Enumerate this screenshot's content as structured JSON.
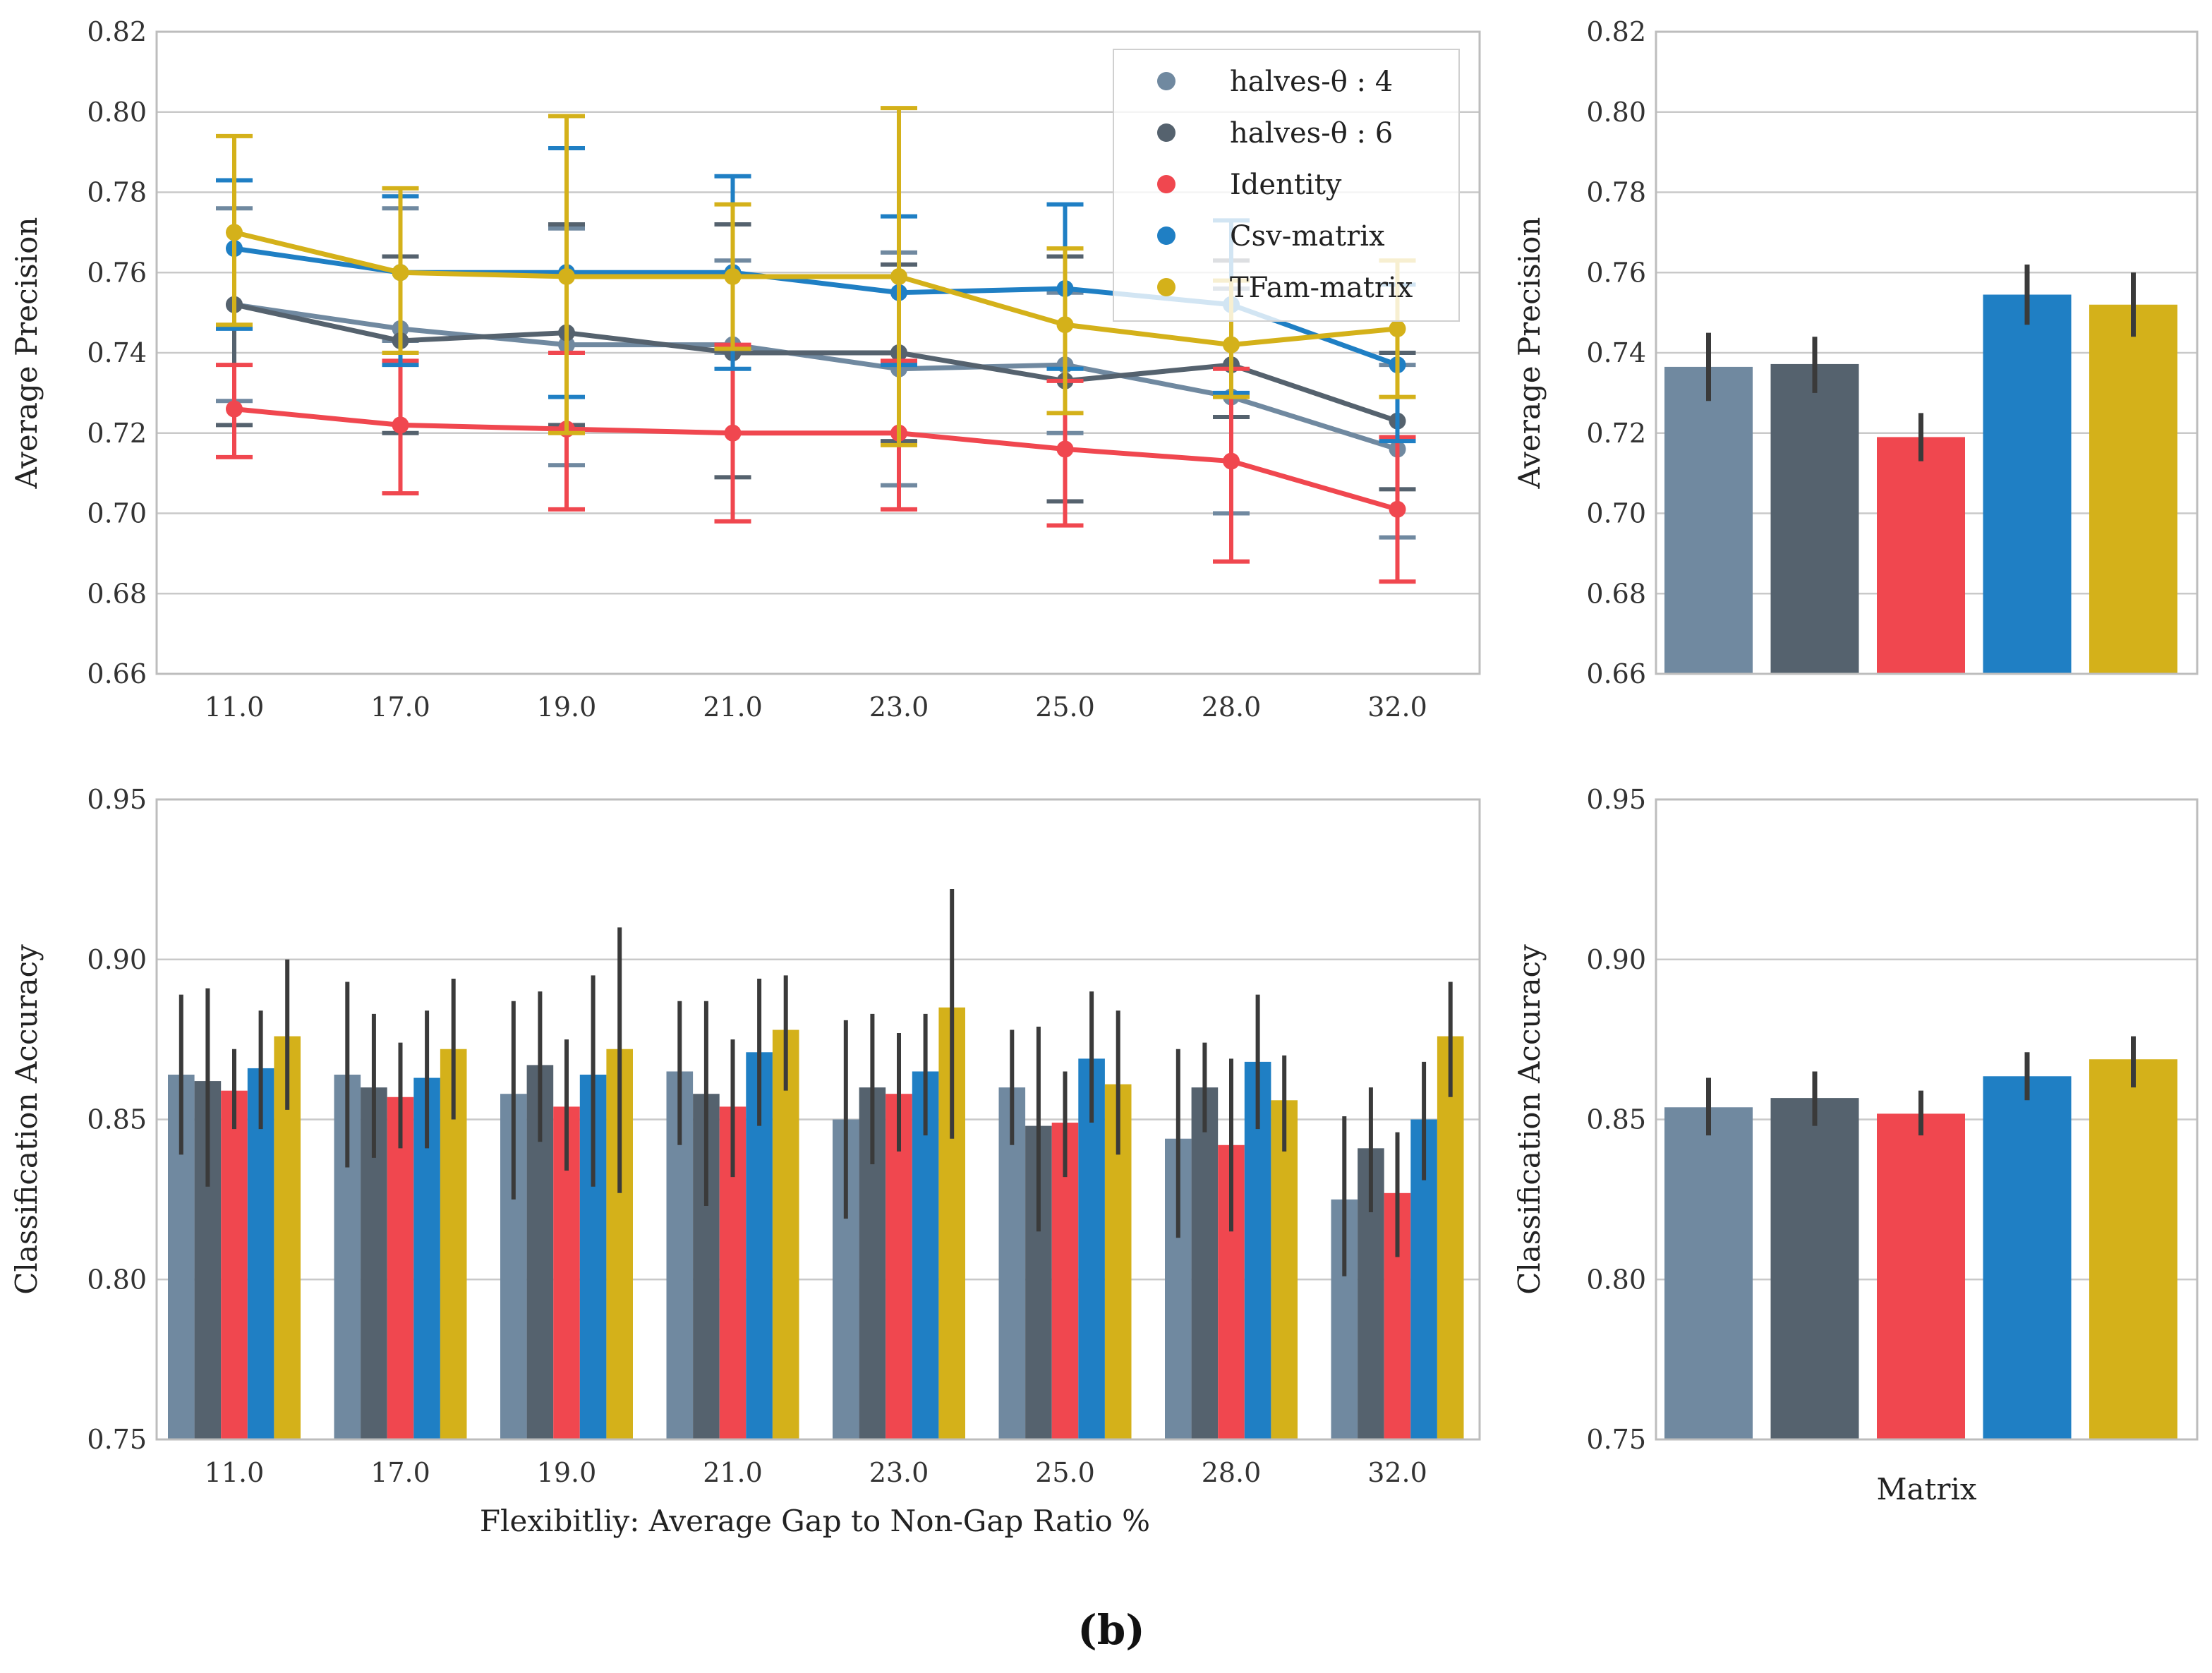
{
  "caption": "(b)",
  "colors": {
    "halves4": "#7089a0",
    "halves6": "#55626e",
    "identity": "#f0474f",
    "csv": "#1f7fc4",
    "tfam": "#d4b11a",
    "errbar": "#3a3a3a",
    "grid": "#c9c9c9",
    "axis": "#bdbdbd"
  },
  "series": [
    {
      "key": "halves4",
      "name": "halves-θ : 4"
    },
    {
      "key": "halves6",
      "name": "halves-θ : 6"
    },
    {
      "key": "identity",
      "name": "Identity"
    },
    {
      "key": "csv",
      "name": "Csv-matrix"
    },
    {
      "key": "tfam",
      "name": "TFam-matrix"
    }
  ],
  "chart_data": [
    {
      "id": "ap_line",
      "type": "line",
      "title": "",
      "xlabel": "",
      "ylabel": "Average Precision",
      "categories": [
        "11.0",
        "17.0",
        "19.0",
        "21.0",
        "23.0",
        "25.0",
        "28.0",
        "32.0"
      ],
      "ylim": [
        0.66,
        0.82
      ],
      "yticks": [
        "0.66",
        "0.68",
        "0.70",
        "0.72",
        "0.74",
        "0.76",
        "0.78",
        "0.80",
        "0.82"
      ],
      "legend": "top-right",
      "series": [
        {
          "name": "halves-θ : 4",
          "values": [
            0.752,
            0.746,
            0.742,
            0.742,
            0.736,
            0.737,
            0.729,
            0.716
          ],
          "err_low": [
            0.728,
            0.743,
            0.712,
            0.74,
            0.707,
            0.72,
            0.7,
            0.694
          ],
          "err_high": [
            0.776,
            0.776,
            0.771,
            0.763,
            0.765,
            0.755,
            0.756,
            0.737
          ]
        },
        {
          "name": "halves-θ : 6",
          "values": [
            0.752,
            0.743,
            0.745,
            0.74,
            0.74,
            0.733,
            0.737,
            0.723
          ],
          "err_low": [
            0.722,
            0.72,
            0.722,
            0.709,
            0.718,
            0.703,
            0.724,
            0.706
          ],
          "err_high": [
            0.783,
            0.764,
            0.772,
            0.772,
            0.762,
            0.764,
            0.763,
            0.74
          ]
        },
        {
          "name": "Identity",
          "values": [
            0.726,
            0.722,
            0.721,
            0.72,
            0.72,
            0.716,
            0.713,
            0.701
          ],
          "err_low": [
            0.714,
            0.705,
            0.701,
            0.698,
            0.701,
            0.697,
            0.688,
            0.683
          ],
          "err_high": [
            0.737,
            0.738,
            0.74,
            0.742,
            0.738,
            0.733,
            0.736,
            0.719
          ]
        },
        {
          "name": "Csv-matrix",
          "values": [
            0.766,
            0.76,
            0.76,
            0.76,
            0.755,
            0.756,
            0.752,
            0.737
          ],
          "err_low": [
            0.746,
            0.737,
            0.729,
            0.736,
            0.737,
            0.736,
            0.73,
            0.718
          ],
          "err_high": [
            0.783,
            0.779,
            0.791,
            0.784,
            0.774,
            0.777,
            0.773,
            0.757
          ]
        },
        {
          "name": "TFam-matrix",
          "values": [
            0.77,
            0.76,
            0.759,
            0.759,
            0.759,
            0.747,
            0.742,
            0.746
          ],
          "err_low": [
            0.747,
            0.74,
            0.72,
            0.741,
            0.717,
            0.725,
            0.729,
            0.729
          ],
          "err_high": [
            0.794,
            0.781,
            0.799,
            0.777,
            0.801,
            0.766,
            0.758,
            0.763
          ]
        }
      ]
    },
    {
      "id": "ap_bar",
      "type": "bar",
      "title": "",
      "xlabel": "",
      "ylabel": "Average Precision",
      "categories": [
        "halves-θ : 4",
        "halves-θ : 6",
        "Identity",
        "Csv-matrix",
        "TFam-matrix"
      ],
      "values": [
        0.7365,
        0.7372,
        0.719,
        0.7545,
        0.752
      ],
      "err_low": [
        0.728,
        0.73,
        0.713,
        0.747,
        0.744
      ],
      "err_high": [
        0.745,
        0.744,
        0.725,
        0.762,
        0.76
      ],
      "ylim": [
        0.66,
        0.82
      ],
      "yticks": [
        "0.66",
        "0.68",
        "0.70",
        "0.72",
        "0.74",
        "0.76",
        "0.78",
        "0.80",
        "0.82"
      ]
    },
    {
      "id": "ca_grouped",
      "type": "bar",
      "title": "",
      "xlabel": "Flexibitliy: Average Gap to Non-Gap Ratio %",
      "ylabel": "Classification Accuracy",
      "categories": [
        "11.0",
        "17.0",
        "19.0",
        "21.0",
        "23.0",
        "25.0",
        "28.0",
        "32.0"
      ],
      "ylim": [
        0.75,
        0.95
      ],
      "yticks": [
        "0.75",
        "0.80",
        "0.85",
        "0.90",
        "0.95"
      ],
      "series": [
        {
          "name": "halves-θ : 4",
          "values": [
            0.864,
            0.864,
            0.858,
            0.865,
            0.85,
            0.86,
            0.844,
            0.825
          ],
          "err_low": [
            0.839,
            0.835,
            0.825,
            0.842,
            0.819,
            0.842,
            0.813,
            0.801
          ],
          "err_high": [
            0.889,
            0.893,
            0.887,
            0.887,
            0.881,
            0.878,
            0.872,
            0.851
          ]
        },
        {
          "name": "halves-θ : 6",
          "values": [
            0.862,
            0.86,
            0.867,
            0.858,
            0.86,
            0.848,
            0.86,
            0.841
          ],
          "err_low": [
            0.829,
            0.838,
            0.843,
            0.823,
            0.836,
            0.815,
            0.846,
            0.821
          ],
          "err_high": [
            0.891,
            0.883,
            0.89,
            0.887,
            0.883,
            0.879,
            0.874,
            0.86
          ]
        },
        {
          "name": "Identity",
          "values": [
            0.859,
            0.857,
            0.854,
            0.854,
            0.858,
            0.849,
            0.842,
            0.827
          ],
          "err_low": [
            0.847,
            0.841,
            0.834,
            0.832,
            0.84,
            0.832,
            0.815,
            0.807
          ],
          "err_high": [
            0.872,
            0.874,
            0.875,
            0.875,
            0.877,
            0.865,
            0.869,
            0.846
          ]
        },
        {
          "name": "Csv-matrix",
          "values": [
            0.866,
            0.863,
            0.864,
            0.871,
            0.865,
            0.869,
            0.868,
            0.85
          ],
          "err_low": [
            0.847,
            0.841,
            0.829,
            0.848,
            0.845,
            0.849,
            0.847,
            0.831
          ],
          "err_high": [
            0.884,
            0.884,
            0.895,
            0.894,
            0.883,
            0.89,
            0.889,
            0.868
          ]
        },
        {
          "name": "TFam-matrix",
          "values": [
            0.876,
            0.872,
            0.872,
            0.878,
            0.885,
            0.861,
            0.856,
            0.876
          ],
          "err_low": [
            0.853,
            0.85,
            0.827,
            0.859,
            0.844,
            0.839,
            0.84,
            0.857
          ],
          "err_high": [
            0.9,
            0.894,
            0.91,
            0.895,
            0.922,
            0.884,
            0.87,
            0.893
          ]
        }
      ]
    },
    {
      "id": "ca_bar",
      "type": "bar",
      "title": "",
      "xlabel": "Matrix",
      "ylabel": "Classification Accuracy",
      "categories": [
        "halves-θ : 4",
        "halves-θ : 6",
        "Identity",
        "Csv-matrix",
        "TFam-matrix"
      ],
      "values": [
        0.8538,
        0.8567,
        0.8518,
        0.8635,
        0.8688
      ],
      "err_low": [
        0.845,
        0.848,
        0.845,
        0.856,
        0.86
      ],
      "err_high": [
        0.863,
        0.865,
        0.859,
        0.871,
        0.876
      ],
      "ylim": [
        0.75,
        0.95
      ],
      "yticks": [
        "0.75",
        "0.80",
        "0.85",
        "0.90",
        "0.95"
      ]
    }
  ]
}
